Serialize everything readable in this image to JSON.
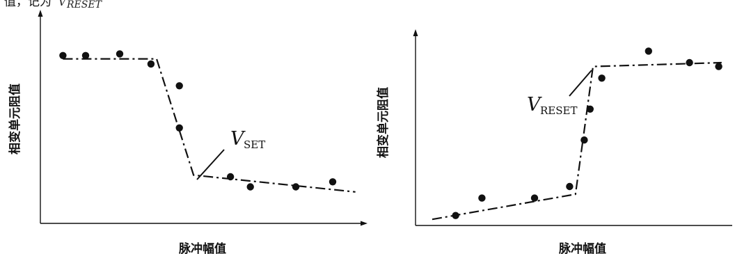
{
  "top_fragment": {
    "prefix": "值，记为",
    "symbol": "V",
    "subscript": "RESET"
  },
  "chart_data": [
    {
      "type": "scatter",
      "id": "set",
      "xlabel": "脉冲幅值",
      "ylabel": "相变单元阻值",
      "annotation": {
        "symbol": "V",
        "subscript": "SET"
      },
      "points": [
        [
          0.05,
          0.91
        ],
        [
          0.13,
          0.91
        ],
        [
          0.25,
          0.92
        ],
        [
          0.36,
          0.86
        ],
        [
          0.46,
          0.73
        ],
        [
          0.46,
          0.48
        ],
        [
          0.64,
          0.19
        ],
        [
          0.71,
          0.13
        ],
        [
          0.87,
          0.13
        ],
        [
          1.0,
          0.16
        ]
      ],
      "fit": [
        [
          0.05,
          0.89
        ],
        [
          0.38,
          0.89
        ],
        [
          0.51,
          0.2
        ],
        [
          1.08,
          0.1
        ]
      ]
    },
    {
      "type": "scatter",
      "id": "reset",
      "xlabel": "脉冲幅值",
      "ylabel": "相变单元阻值",
      "annotation": {
        "symbol": "V",
        "subscript": "RESET"
      },
      "points": [
        [
          0.13,
          0.03
        ],
        [
          0.22,
          0.12
        ],
        [
          0.4,
          0.12
        ],
        [
          0.52,
          0.18
        ],
        [
          0.57,
          0.42
        ],
        [
          0.59,
          0.58
        ],
        [
          0.63,
          0.74
        ],
        [
          0.79,
          0.88
        ],
        [
          0.93,
          0.82
        ],
        [
          1.03,
          0.8
        ]
      ],
      "fit": [
        [
          0.05,
          0.01
        ],
        [
          0.54,
          0.14
        ],
        [
          0.6,
          0.8
        ],
        [
          1.04,
          0.82
        ]
      ]
    }
  ]
}
